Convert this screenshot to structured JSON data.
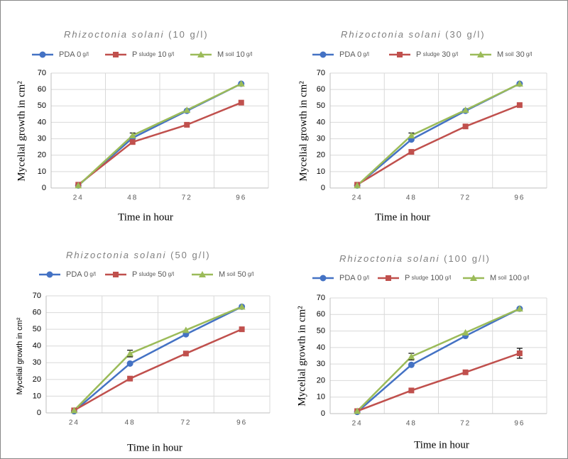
{
  "colors": {
    "pda": "#4472c4",
    "sludge": "#c0504d",
    "soil": "#9bbb59",
    "grid": "#d9d9d9",
    "axis": "#bfbfbf",
    "text": "#595959",
    "errorbar": "#000000"
  },
  "chart_data": [
    {
      "type": "line",
      "title_italic": "Rhizoctonia solani",
      "title_rest": " (10 g/l)",
      "x": [
        "24",
        "48",
        "72",
        "96"
      ],
      "ylim": [
        0,
        70
      ],
      "yticks": [
        0,
        10,
        20,
        30,
        40,
        50,
        60,
        70
      ],
      "xlabel": "Time in hour",
      "ylabel": "Mycelial growth in  cm²",
      "legend_position": "top",
      "series": [
        {
          "name": "PDA 0 g/l",
          "marker": "circle",
          "values": [
            1.5,
            30.5,
            47,
            63.5
          ]
        },
        {
          "name": "P sludge 10 g/l",
          "marker": "square",
          "values": [
            2,
            28,
            38.5,
            52
          ]
        },
        {
          "name": "M soil 10 g/l",
          "marker": "triangle",
          "values": [
            1.5,
            32,
            47.5,
            63.5
          ],
          "errorbars": [
            0,
            1.5,
            0,
            0
          ]
        }
      ]
    },
    {
      "type": "line",
      "title_italic": "Rhizoctonia solani",
      "title_rest": " (30 g/l)",
      "x": [
        "24",
        "48",
        "72",
        "96"
      ],
      "ylim": [
        0,
        70
      ],
      "yticks": [
        0,
        10,
        20,
        30,
        40,
        50,
        60,
        70
      ],
      "xlabel": "Time in hour",
      "ylabel": "Mycelial growth in cm²",
      "legend_position": "top",
      "series": [
        {
          "name": "PDA 0 g/l",
          "marker": "circle",
          "values": [
            1.5,
            29.5,
            47,
            63.5
          ]
        },
        {
          "name": "P sludge 30 g/l",
          "marker": "square",
          "values": [
            2,
            22,
            37.5,
            50.5
          ]
        },
        {
          "name": "M soil 30 g/l",
          "marker": "triangle",
          "values": [
            1.5,
            32,
            47.5,
            63.5
          ],
          "errorbars": [
            0,
            1.5,
            0,
            0
          ]
        }
      ]
    },
    {
      "type": "line",
      "title_italic": "Rhizoctonia solani",
      "title_rest": " (50 g/l)",
      "x": [
        "24",
        "48",
        "72",
        "96"
      ],
      "ylim": [
        0,
        70
      ],
      "yticks": [
        0,
        10,
        20,
        30,
        40,
        50,
        60,
        70
      ],
      "xlabel": "Time in hour",
      "ylabel": "Mycelial growth in cm²",
      "legend_position": "top",
      "series": [
        {
          "name": "PDA 0 g/l",
          "marker": "circle",
          "values": [
            1,
            29.5,
            47,
            63.5
          ]
        },
        {
          "name": "P sludge 50 g/l",
          "marker": "square",
          "values": [
            1.5,
            20.5,
            35.5,
            50
          ]
        },
        {
          "name": "M soil 50 g/l",
          "marker": "triangle",
          "values": [
            1.5,
            35.5,
            49.5,
            63.5
          ],
          "errorbars": [
            0,
            2,
            0,
            0
          ]
        }
      ]
    },
    {
      "type": "line",
      "title_italic": "Rhizoctonia solani",
      "title_rest": " (100 g/l)",
      "x": [
        "24",
        "48",
        "72",
        "96"
      ],
      "ylim": [
        0,
        70
      ],
      "yticks": [
        0,
        10,
        20,
        30,
        40,
        50,
        60,
        70
      ],
      "xlabel": "Time in hour",
      "ylabel": "Mycelial growth in cm²",
      "legend_position": "top",
      "series": [
        {
          "name": "PDA 0 g/l",
          "marker": "circle",
          "values": [
            1,
            29.5,
            47,
            63.5
          ]
        },
        {
          "name": "P sludge 100 g/l",
          "marker": "square",
          "values": [
            1.5,
            14,
            25,
            36.5
          ],
          "errorbars": [
            0,
            0,
            0,
            3
          ]
        },
        {
          "name": "M soil 100 g/l",
          "marker": "triangle",
          "values": [
            1.5,
            34.5,
            49,
            63.5
          ],
          "errorbars": [
            0,
            2,
            0,
            0
          ]
        }
      ]
    }
  ]
}
